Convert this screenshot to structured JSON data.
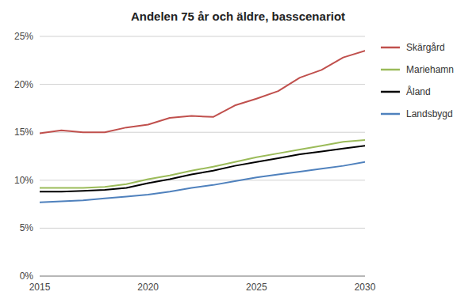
{
  "chart_data": {
    "type": "line",
    "title": "Andelen 75 år och äldre, basscenariot",
    "x": [
      2015,
      2016,
      2017,
      2018,
      2019,
      2020,
      2021,
      2022,
      2023,
      2024,
      2025,
      2026,
      2027,
      2028,
      2029,
      2030
    ],
    "series": [
      {
        "name": "Skärgård",
        "color": "#C0504D",
        "values": [
          0.149,
          0.152,
          0.15,
          0.15,
          0.155,
          0.158,
          0.165,
          0.167,
          0.166,
          0.178,
          0.185,
          0.193,
          0.207,
          0.215,
          0.228,
          0.235
        ]
      },
      {
        "name": "Mariehamn",
        "color": "#9BBB59",
        "values": [
          0.092,
          0.092,
          0.092,
          0.093,
          0.096,
          0.101,
          0.105,
          0.11,
          0.114,
          0.119,
          0.124,
          0.128,
          0.132,
          0.136,
          0.14,
          0.142
        ]
      },
      {
        "name": "Åland",
        "color": "#000000",
        "values": [
          0.088,
          0.088,
          0.089,
          0.09,
          0.092,
          0.097,
          0.101,
          0.106,
          0.11,
          0.115,
          0.119,
          0.123,
          0.127,
          0.13,
          0.133,
          0.136
        ]
      },
      {
        "name": "Landsbygd",
        "color": "#4F81BD",
        "values": [
          0.077,
          0.078,
          0.079,
          0.081,
          0.083,
          0.085,
          0.088,
          0.092,
          0.095,
          0.099,
          0.103,
          0.106,
          0.109,
          0.112,
          0.115,
          0.119
        ]
      }
    ],
    "xlim": [
      2015,
      2030
    ],
    "xticks": [
      2015,
      2020,
      2025,
      2030
    ],
    "ylim": [
      0,
      0.25
    ],
    "yticks": [
      {
        "value": 0.0,
        "label": "0%"
      },
      {
        "value": 0.05,
        "label": "5%"
      },
      {
        "value": 0.1,
        "label": "10%"
      },
      {
        "value": 0.15,
        "label": "15%"
      },
      {
        "value": 0.2,
        "label": "20%"
      },
      {
        "value": 0.25,
        "label": "25%"
      }
    ],
    "grid": true,
    "legend": "right"
  }
}
